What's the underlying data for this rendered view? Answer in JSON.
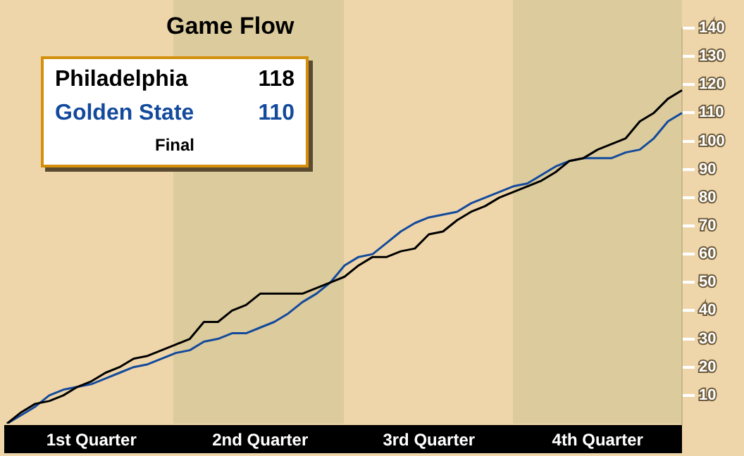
{
  "chart_data": {
    "type": "line",
    "title": "Game Flow",
    "legend": "top left",
    "marker": "none",
    "line_style": "solid",
    "grid": false,
    "categories": [
      null,
      null,
      null,
      null,
      null,
      null,
      "1st Quarter",
      null,
      null,
      null,
      null,
      null,
      null,
      null,
      null,
      null,
      null,
      null,
      "2nd Quarter",
      null,
      null,
      null,
      null,
      null,
      null,
      null,
      null,
      null,
      null,
      null,
      "3rd Quarter",
      null,
      null,
      null,
      null,
      null,
      null,
      null,
      null,
      null,
      null,
      null,
      "4th Quarter",
      null,
      null,
      null,
      null,
      null,
      null
    ],
    "ylim": [
      0,
      140
    ],
    "yticks": [
      10,
      20,
      30,
      40,
      50,
      60,
      70,
      80,
      90,
      100,
      110,
      120,
      130,
      140
    ],
    "annotations": [
      "118",
      "110",
      "Final"
    ],
    "series": [
      {
        "name": "Philadelphia",
        "color": "#000000",
        "values": [
          0,
          4,
          7,
          8,
          10,
          13,
          15,
          18,
          20,
          23,
          24,
          26,
          28,
          30,
          36,
          36,
          40,
          42,
          46,
          46,
          46,
          46,
          48,
          50,
          52,
          56,
          59,
          59,
          61,
          62,
          67,
          68,
          72,
          75,
          77,
          80,
          82,
          84,
          86,
          89,
          93,
          94,
          97,
          99,
          101,
          107,
          110,
          115,
          118
        ]
      },
      {
        "name": "Golden State",
        "color": "#134a9c",
        "values": [
          0,
          3,
          6,
          10,
          12,
          13,
          14,
          16,
          18,
          20,
          21,
          23,
          25,
          26,
          29,
          30,
          32,
          32,
          34,
          36,
          39,
          43,
          46,
          50,
          56,
          59,
          60,
          64,
          68,
          71,
          73,
          74,
          75,
          78,
          80,
          82,
          84,
          85,
          88,
          91,
          93,
          94,
          94,
          94,
          96,
          97,
          101,
          107,
          110
        ]
      }
    ]
  }
}
